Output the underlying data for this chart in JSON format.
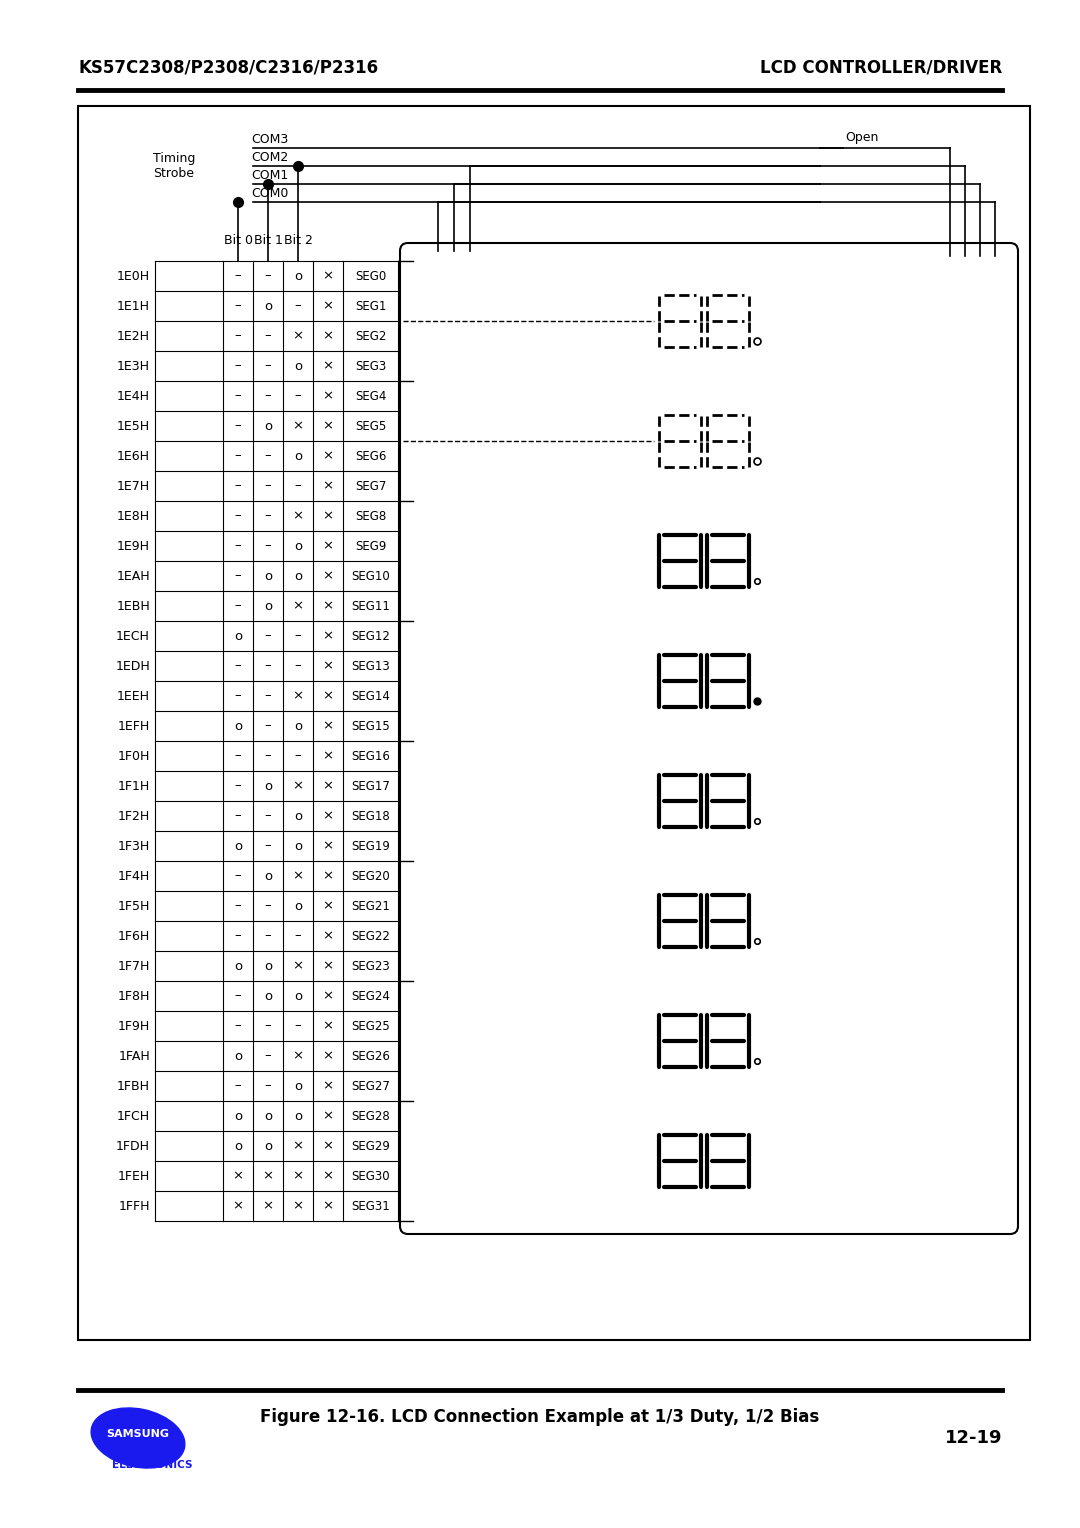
{
  "header_left": "KS57C2308/P2308/C2316/P2316",
  "header_right": "LCD CONTROLLER/DRIVER",
  "figure_caption": "Figure 12-16. LCD Connection Example at 1/3 Duty, 1/2 Bias",
  "page_number": "12-19",
  "com_labels": [
    "COM3",
    "COM2",
    "COM1",
    "COM0"
  ],
  "open_label": "Open",
  "timing_label": "Timing\nStrobe",
  "bit_labels": [
    "Bit 0",
    "Bit 1",
    "Bit 2"
  ],
  "row_addresses": [
    "1E0H",
    "1E1H",
    "1E2H",
    "1E3H",
    "1E4H",
    "1E5H",
    "1E6H",
    "1E7H",
    "1E8H",
    "1E9H",
    "1EAH",
    "1EBH",
    "1ECH",
    "1EDH",
    "1EEH",
    "1EFH",
    "1F0H",
    "1F1H",
    "1F2H",
    "1F3H",
    "1F4H",
    "1F5H",
    "1F6H",
    "1F7H",
    "1F8H",
    "1F9H",
    "1FAH",
    "1FBH",
    "1FCH",
    "1FDH",
    "1FEH",
    "1FFH"
  ],
  "seg_labels": [
    "SEG0",
    "SEG1",
    "SEG2",
    "SEG3",
    "SEG4",
    "SEG5",
    "SEG6",
    "SEG7",
    "SEG8",
    "SEG9",
    "SEG10",
    "SEG11",
    "SEG12",
    "SEG13",
    "SEG14",
    "SEG15",
    "SEG16",
    "SEG17",
    "SEG18",
    "SEG19",
    "SEG20",
    "SEG21",
    "SEG22",
    "SEG23",
    "SEG24",
    "SEG25",
    "SEG26",
    "SEG27",
    "SEG28",
    "SEG29",
    "SEG30",
    "SEG31"
  ],
  "table_data": [
    [
      "–",
      "–",
      "o",
      "×"
    ],
    [
      "–",
      "o",
      "–",
      "×"
    ],
    [
      "–",
      "–",
      "×",
      "×"
    ],
    [
      "–",
      "–",
      "o",
      "×"
    ],
    [
      "–",
      "–",
      "–",
      "×"
    ],
    [
      "–",
      "o",
      "×",
      "×"
    ],
    [
      "–",
      "–",
      "o",
      "×"
    ],
    [
      "–",
      "–",
      "–",
      "×"
    ],
    [
      "–",
      "–",
      "×",
      "×"
    ],
    [
      "–",
      "–",
      "o",
      "×"
    ],
    [
      "–",
      "o",
      "o",
      "×"
    ],
    [
      "–",
      "o",
      "×",
      "×"
    ],
    [
      "o",
      "–",
      "–",
      "×"
    ],
    [
      "–",
      "–",
      "–",
      "×"
    ],
    [
      "–",
      "–",
      "×",
      "×"
    ],
    [
      "o",
      "–",
      "o",
      "×"
    ],
    [
      "–",
      "–",
      "–",
      "×"
    ],
    [
      "–",
      "o",
      "×",
      "×"
    ],
    [
      "–",
      "–",
      "o",
      "×"
    ],
    [
      "o",
      "–",
      "o",
      "×"
    ],
    [
      "–",
      "o",
      "×",
      "×"
    ],
    [
      "–",
      "–",
      "o",
      "×"
    ],
    [
      "–",
      "–",
      "–",
      "×"
    ],
    [
      "o",
      "o",
      "×",
      "×"
    ],
    [
      "–",
      "o",
      "o",
      "×"
    ],
    [
      "–",
      "–",
      "–",
      "×"
    ],
    [
      "o",
      "–",
      "×",
      "×"
    ],
    [
      "–",
      "–",
      "o",
      "×"
    ],
    [
      "o",
      "o",
      "o",
      "×"
    ],
    [
      "o",
      "o",
      "×",
      "×"
    ],
    [
      "×",
      "×",
      "×",
      "×"
    ],
    [
      "×",
      "×",
      "×",
      "×"
    ]
  ],
  "bg_color": "#ffffff",
  "border_color": "#000000",
  "text_color": "#000000",
  "samsung_blue": "#1a1aee",
  "header_line_color": "#000000"
}
